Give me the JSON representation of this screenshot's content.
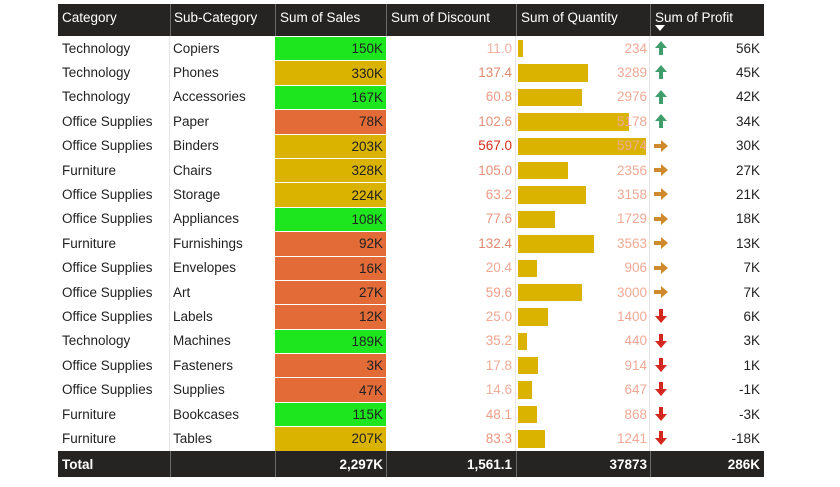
{
  "table": {
    "headers": {
      "category": "Category",
      "sub_category": "Sub-Category",
      "sales": "Sum of Sales",
      "discount": "Sum of Discount",
      "quantity": "Sum of Quantity",
      "profit": "Sum of Profit"
    },
    "rows": [
      {
        "category": "Technology",
        "sub_category": "Copiers",
        "sales": "150K",
        "discount": "11.0",
        "quantity": "234",
        "quantity_value": 234,
        "profit": "56K",
        "sales_color": "#1ee61e",
        "discount_color": "#f0b0a0",
        "trend": "up"
      },
      {
        "category": "Technology",
        "sub_category": "Phones",
        "sales": "330K",
        "discount": "137.4",
        "quantity": "3289",
        "quantity_value": 3289,
        "profit": "45K",
        "sales_color": "#d9b300",
        "discount_color": "#e08a70",
        "trend": "up"
      },
      {
        "category": "Technology",
        "sub_category": "Accessories",
        "sales": "167K",
        "discount": "60.8",
        "quantity": "2976",
        "quantity_value": 2976,
        "profit": "42K",
        "sales_color": "#1ee61e",
        "discount_color": "#ed9c86",
        "trend": "up"
      },
      {
        "category": "Office Supplies",
        "sub_category": "Paper",
        "sales": "78K",
        "discount": "102.6",
        "quantity": "5178",
        "quantity_value": 5178,
        "profit": "34K",
        "sales_color": "#e36b37",
        "discount_color": "#e6917a",
        "trend": "up"
      },
      {
        "category": "Office Supplies",
        "sub_category": "Binders",
        "sales": "203K",
        "discount": "567.0",
        "quantity": "5974",
        "quantity_value": 5974,
        "profit": "30K",
        "sales_color": "#d9b300",
        "discount_color": "#d42e1b",
        "trend": "right"
      },
      {
        "category": "Furniture",
        "sub_category": "Chairs",
        "sales": "328K",
        "discount": "105.0",
        "quantity": "2356",
        "quantity_value": 2356,
        "profit": "27K",
        "sales_color": "#d9b300",
        "discount_color": "#e6917a",
        "trend": "right"
      },
      {
        "category": "Office Supplies",
        "sub_category": "Storage",
        "sales": "224K",
        "discount": "63.2",
        "quantity": "3158",
        "quantity_value": 3158,
        "profit": "21K",
        "sales_color": "#d9b300",
        "discount_color": "#ed9c86",
        "trend": "right"
      },
      {
        "category": "Office Supplies",
        "sub_category": "Appliances",
        "sales": "108K",
        "discount": "77.6",
        "quantity": "1729",
        "quantity_value": 1729,
        "profit": "18K",
        "sales_color": "#1ee61e",
        "discount_color": "#ea9780",
        "trend": "right"
      },
      {
        "category": "Furniture",
        "sub_category": "Furnishings",
        "sales": "92K",
        "discount": "132.4",
        "quantity": "3563",
        "quantity_value": 3563,
        "profit": "13K",
        "sales_color": "#e36b37",
        "discount_color": "#e08a70",
        "trend": "right"
      },
      {
        "category": "Office Supplies",
        "sub_category": "Envelopes",
        "sales": "16K",
        "discount": "20.4",
        "quantity": "906",
        "quantity_value": 906,
        "profit": "7K",
        "sales_color": "#e36b37",
        "discount_color": "#efaa98",
        "trend": "right"
      },
      {
        "category": "Office Supplies",
        "sub_category": "Art",
        "sales": "27K",
        "discount": "59.6",
        "quantity": "3000",
        "quantity_value": 3000,
        "profit": "7K",
        "sales_color": "#e36b37",
        "discount_color": "#ed9c86",
        "trend": "right"
      },
      {
        "category": "Office Supplies",
        "sub_category": "Labels",
        "sales": "12K",
        "discount": "25.0",
        "quantity": "1400",
        "quantity_value": 1400,
        "profit": "6K",
        "sales_color": "#e36b37",
        "discount_color": "#efa894",
        "trend": "down"
      },
      {
        "category": "Technology",
        "sub_category": "Machines",
        "sales": "189K",
        "discount": "35.2",
        "quantity": "440",
        "quantity_value": 440,
        "profit": "3K",
        "sales_color": "#1ee61e",
        "discount_color": "#eea48f",
        "trend": "down"
      },
      {
        "category": "Office Supplies",
        "sub_category": "Fasteners",
        "sales": "3K",
        "discount": "17.8",
        "quantity": "914",
        "quantity_value": 914,
        "profit": "1K",
        "sales_color": "#e36b37",
        "discount_color": "#efaa98",
        "trend": "down"
      },
      {
        "category": "Office Supplies",
        "sub_category": "Supplies",
        "sales": "47K",
        "discount": "14.6",
        "quantity": "647",
        "quantity_value": 647,
        "profit": "-1K",
        "sales_color": "#e36b37",
        "discount_color": "#f0ad9b",
        "trend": "down"
      },
      {
        "category": "Furniture",
        "sub_category": "Bookcases",
        "sales": "115K",
        "discount": "48.1",
        "quantity": "868",
        "quantity_value": 868,
        "profit": "-3K",
        "sales_color": "#1ee61e",
        "discount_color": "#eda08a",
        "trend": "down"
      },
      {
        "category": "Furniture",
        "sub_category": "Tables",
        "sales": "207K",
        "discount": "83.3",
        "quantity": "1241",
        "quantity_value": 1241,
        "profit": "-18K",
        "sales_color": "#d9b300",
        "discount_color": "#e9957e",
        "trend": "down"
      }
    ],
    "totals": {
      "label": "Total",
      "sales": "2,297K",
      "discount": "1,561.1",
      "quantity": "37873",
      "profit": "286K"
    },
    "quantity_max": 5974,
    "sort_indicator": "sort-descending-icon",
    "colors": {
      "header_bg": "#252423",
      "quantity_bar": "#d9b300",
      "arrow_up": "#3f9e6b",
      "arrow_right": "#d08a2e",
      "arrow_down": "#d4281f"
    }
  }
}
